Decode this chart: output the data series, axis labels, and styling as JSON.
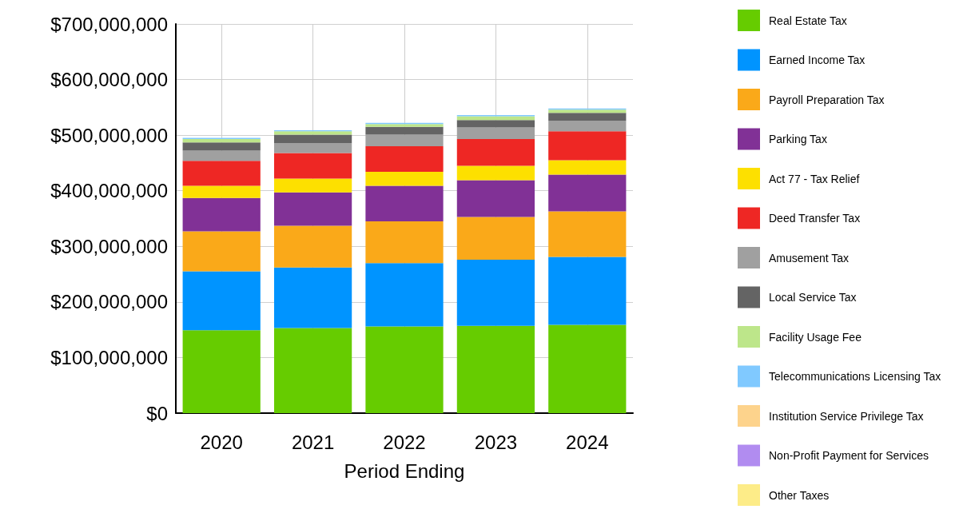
{
  "chart_data": {
    "type": "bar",
    "stacked": true,
    "xlabel": "Period Ending",
    "categories": [
      "2020",
      "2021",
      "2022",
      "2023",
      "2024"
    ],
    "ylim": [
      0,
      700000000
    ],
    "yticks": [
      {
        "value": 0,
        "label": "$0"
      },
      {
        "value": 100000000,
        "label": "$100,000,000"
      },
      {
        "value": 200000000,
        "label": "$200,000,000"
      },
      {
        "value": 300000000,
        "label": "$300,000,000"
      },
      {
        "value": 400000000,
        "label": "$400,000,000"
      },
      {
        "value": 500000000,
        "label": "$500,000,000"
      },
      {
        "value": 600000000,
        "label": "$600,000,000"
      },
      {
        "value": 700000000,
        "label": "$700,000,000"
      }
    ],
    "grid": true,
    "legend": "right",
    "series": [
      {
        "name": "Real Estate Tax",
        "color": "#66cc00",
        "values": [
          149000000,
          153000000,
          156000000,
          157000000,
          159000000
        ]
      },
      {
        "name": "Earned Income Tax",
        "color": "#0094ff",
        "values": [
          106000000,
          109000000,
          114000000,
          119000000,
          122000000
        ]
      },
      {
        "name": "Payroll Preparation Tax",
        "color": "#faa919",
        "values": [
          72000000,
          75000000,
          75000000,
          77000000,
          82000000
        ]
      },
      {
        "name": "Parking Tax",
        "color": "#813196",
        "values": [
          60000000,
          60000000,
          64000000,
          66000000,
          66000000
        ]
      },
      {
        "name": "Act 77 - Tax Relief",
        "color": "#fde000",
        "values": [
          22000000,
          25000000,
          25000000,
          26000000,
          26000000
        ]
      },
      {
        "name": "Deed Transfer Tax",
        "color": "#ee2724",
        "values": [
          45000000,
          46000000,
          46000000,
          48000000,
          52000000
        ]
      },
      {
        "name": "Amusement Tax",
        "color": "#a0a0a0",
        "values": [
          18000000,
          18000000,
          21000000,
          21000000,
          19000000
        ]
      },
      {
        "name": "Local Service Tax",
        "color": "#646464",
        "values": [
          15000000,
          15000000,
          14000000,
          13000000,
          14000000
        ]
      },
      {
        "name": "Facility Usage Fee",
        "color": "#bde68a",
        "values": [
          6000000,
          6000000,
          5000000,
          7000000,
          6000000
        ]
      },
      {
        "name": "Telecommunications Licensing Tax",
        "color": "#80c9ff",
        "values": [
          2000000,
          2000000,
          2000000,
          2000000,
          2000000
        ]
      },
      {
        "name": "Institution Service Privilege Tax",
        "color": "#fdd38c",
        "values": [
          null,
          null,
          null,
          null,
          null
        ]
      },
      {
        "name": "Non-Profit Payment for Services",
        "color": "#b18cf0",
        "values": [
          null,
          null,
          null,
          null,
          null
        ]
      },
      {
        "name": "Other Taxes",
        "color": "#fdec88",
        "values": [
          null,
          null,
          null,
          null,
          null
        ]
      }
    ]
  }
}
